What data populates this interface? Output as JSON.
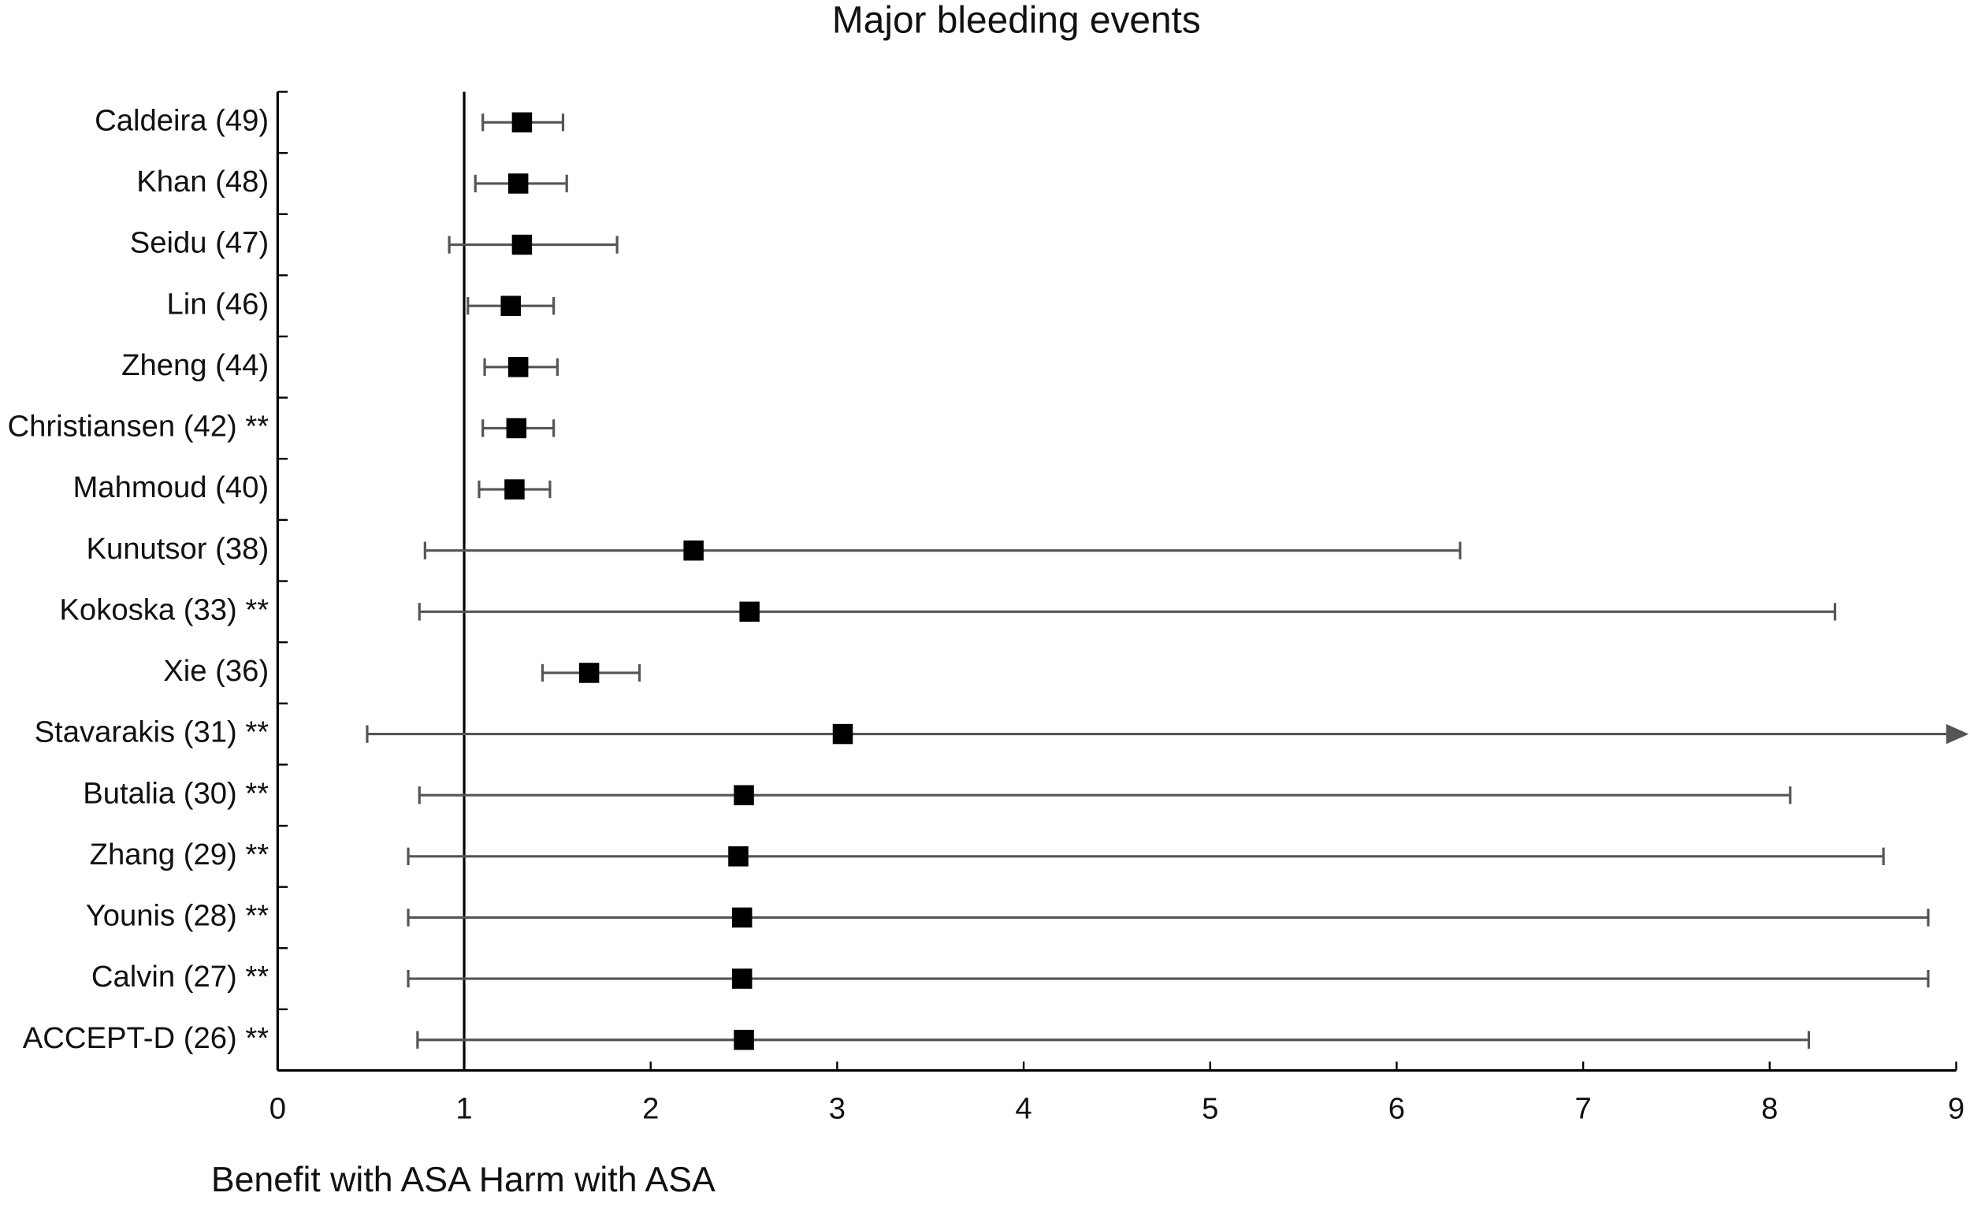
{
  "chart_data": {
    "type": "forest",
    "title": "Major bleeding events",
    "xlabel": "Benefit with ASA Harm with ASA",
    "categories": [
      "Caldeira (49)",
      "Khan (48)",
      "Seidu (47)",
      "Lin (46)",
      "Zheng (44)",
      "Christiansen (42) **",
      "Mahmoud (40)",
      "Kunutsor (38)",
      "Kokoska (33) **",
      "Xie (36)",
      "Stavarakis (31) **",
      "Butalia (30) **",
      "Zhang (29) **",
      "Younis (28) **",
      "Calvin (27) **",
      "ACCEPT-D (26) **"
    ],
    "values": [
      1.31,
      1.29,
      1.31,
      1.25,
      1.29,
      1.28,
      1.27,
      2.23,
      2.53,
      1.67,
      3.03,
      2.5,
      2.47,
      2.49,
      2.49,
      2.5
    ],
    "lower": [
      1.1,
      1.06,
      0.92,
      1.02,
      1.11,
      1.1,
      1.08,
      0.79,
      0.76,
      1.42,
      0.48,
      0.76,
      0.7,
      0.7,
      0.7,
      0.75
    ],
    "upper": [
      1.53,
      1.55,
      1.82,
      1.48,
      1.5,
      1.48,
      1.46,
      6.34,
      8.35,
      1.94,
      null,
      8.11,
      8.61,
      8.85,
      8.85,
      8.21
    ],
    "color": "#000000",
    "whisker_color": "#555555",
    "reference_line": 1,
    "xlim": [
      0,
      9
    ],
    "xticks": [
      0,
      1,
      2,
      3,
      4,
      5,
      6,
      7,
      8,
      9
    ]
  }
}
